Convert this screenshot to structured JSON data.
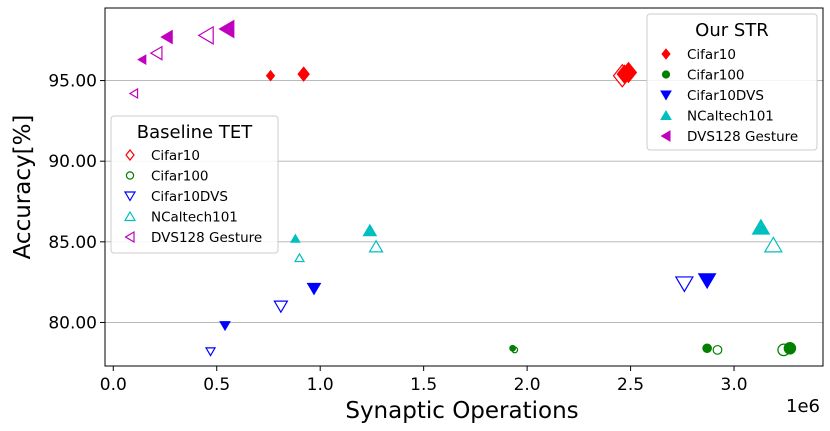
{
  "chart_data": {
    "type": "scatter",
    "xlabel": "Synaptic Operations",
    "ylabel": "Accuracy[%]",
    "x_offset_label": "1e6",
    "xlim": [
      -0.04,
      3.43
    ],
    "ylim": [
      77.3,
      99.5
    ],
    "x_ticks": [
      0.0,
      0.5,
      1.0,
      1.5,
      2.0,
      2.5,
      3.0
    ],
    "x_tick_labels": [
      "0.0",
      "0.5",
      "1.0",
      "1.5",
      "2.0",
      "2.5",
      "3.0"
    ],
    "y_ticks": [
      80.0,
      85.0,
      90.0,
      95.0
    ],
    "y_tick_labels": [
      "80.00",
      "85.00",
      "90.00",
      "95.00"
    ],
    "grid": "horizontal",
    "legends": [
      {
        "title": "Our STR",
        "placement": "top-right",
        "entries": [
          {
            "label": "Cifar10",
            "marker": "diamond",
            "filled": true,
            "color": "#ff0000"
          },
          {
            "label": "Cifar100",
            "marker": "circle",
            "filled": true,
            "color": "#008000"
          },
          {
            "label": "Cifar10DVS",
            "marker": "triangle-down",
            "filled": true,
            "color": "#0000ff"
          },
          {
            "label": "NCaltech101",
            "marker": "triangle-up",
            "filled": true,
            "color": "#00bfbf"
          },
          {
            "label": "DVS128 Gesture",
            "marker": "triangle-left",
            "filled": true,
            "color": "#bf00bf"
          }
        ]
      },
      {
        "title": "Baseline TET",
        "placement": "center-left",
        "entries": [
          {
            "label": "Cifar10",
            "marker": "diamond",
            "filled": false,
            "color": "#ff0000"
          },
          {
            "label": "Cifar100",
            "marker": "circle",
            "filled": false,
            "color": "#008000"
          },
          {
            "label": "Cifar10DVS",
            "marker": "triangle-down",
            "filled": false,
            "color": "#0000ff"
          },
          {
            "label": "NCaltech101",
            "marker": "triangle-up",
            "filled": false,
            "color": "#00bfbf"
          },
          {
            "label": "DVS128 Gesture",
            "marker": "triangle-left",
            "filled": false,
            "color": "#bf00bf"
          }
        ]
      }
    ],
    "series": [
      {
        "name": "Our STR Cifar10",
        "marker": "diamond",
        "filled": true,
        "color": "#ff0000",
        "points": [
          {
            "x": 0.76,
            "y": 95.3,
            "s": 5
          },
          {
            "x": 0.92,
            "y": 95.4,
            "s": 7
          },
          {
            "x": 2.47,
            "y": 95.4,
            "s": 9
          },
          {
            "x": 2.49,
            "y": 95.5,
            "s": 10
          }
        ]
      },
      {
        "name": "Our STR Cifar100",
        "marker": "circle",
        "filled": true,
        "color": "#008000",
        "points": [
          {
            "x": 1.93,
            "y": 78.4,
            "s": 4
          },
          {
            "x": 2.87,
            "y": 78.4,
            "s": 6
          },
          {
            "x": 3.27,
            "y": 78.4,
            "s": 8
          }
        ]
      },
      {
        "name": "Our STR Cifar10DVS",
        "marker": "triangle-down",
        "filled": true,
        "color": "#0000ff",
        "points": [
          {
            "x": 0.54,
            "y": 79.8,
            "s": 5
          },
          {
            "x": 0.97,
            "y": 82.1,
            "s": 6.5
          },
          {
            "x": 2.87,
            "y": 82.6,
            "s": 8.5
          }
        ]
      },
      {
        "name": "Our STR NCaltech101",
        "marker": "triangle-up",
        "filled": true,
        "color": "#00bfbf",
        "points": [
          {
            "x": 0.88,
            "y": 85.2,
            "s": 4.5
          },
          {
            "x": 1.24,
            "y": 85.7,
            "s": 6.5
          },
          {
            "x": 3.13,
            "y": 85.9,
            "s": 8.5
          }
        ]
      },
      {
        "name": "Our STR DVS128 Gesture",
        "marker": "triangle-left",
        "filled": true,
        "color": "#bf00bf",
        "points": [
          {
            "x": 0.14,
            "y": 96.3,
            "s": 4.5
          },
          {
            "x": 0.26,
            "y": 97.7,
            "s": 6.5
          },
          {
            "x": 0.55,
            "y": 98.2,
            "s": 8.5
          }
        ]
      }
    ],
    "baseline_series": [
      {
        "name": "Baseline TET Cifar10",
        "marker": "diamond",
        "filled": false,
        "color": "#ff0000",
        "points": [
          {
            "x": 2.46,
            "y": 95.3,
            "s": 11
          }
        ]
      },
      {
        "name": "Baseline TET Cifar100",
        "marker": "circle",
        "filled": false,
        "color": "#008000",
        "points": [
          {
            "x": 1.94,
            "y": 78.3,
            "s": 4
          },
          {
            "x": 2.92,
            "y": 78.3,
            "s": 6
          },
          {
            "x": 3.24,
            "y": 78.3,
            "s": 8
          }
        ]
      },
      {
        "name": "Baseline TET Cifar10DVS",
        "marker": "triangle-down",
        "filled": false,
        "color": "#0000ff",
        "points": [
          {
            "x": 0.47,
            "y": 78.2,
            "s": 4.5
          },
          {
            "x": 0.81,
            "y": 81.0,
            "s": 6.5
          },
          {
            "x": 2.76,
            "y": 82.4,
            "s": 8.5
          }
        ]
      },
      {
        "name": "Baseline TET NCaltech101",
        "marker": "triangle-up",
        "filled": false,
        "color": "#00bfbf",
        "points": [
          {
            "x": 0.9,
            "y": 84.0,
            "s": 4.5
          },
          {
            "x": 1.27,
            "y": 84.7,
            "s": 6.5
          },
          {
            "x": 3.19,
            "y": 84.8,
            "s": 8.5
          }
        ]
      },
      {
        "name": "Baseline TET DVS128 Gesture",
        "marker": "triangle-left",
        "filled": false,
        "color": "#bf00bf",
        "points": [
          {
            "x": 0.1,
            "y": 94.2,
            "s": 4.5
          },
          {
            "x": 0.21,
            "y": 96.7,
            "s": 6.5
          },
          {
            "x": 0.45,
            "y": 97.8,
            "s": 8.5
          }
        ]
      }
    ]
  }
}
